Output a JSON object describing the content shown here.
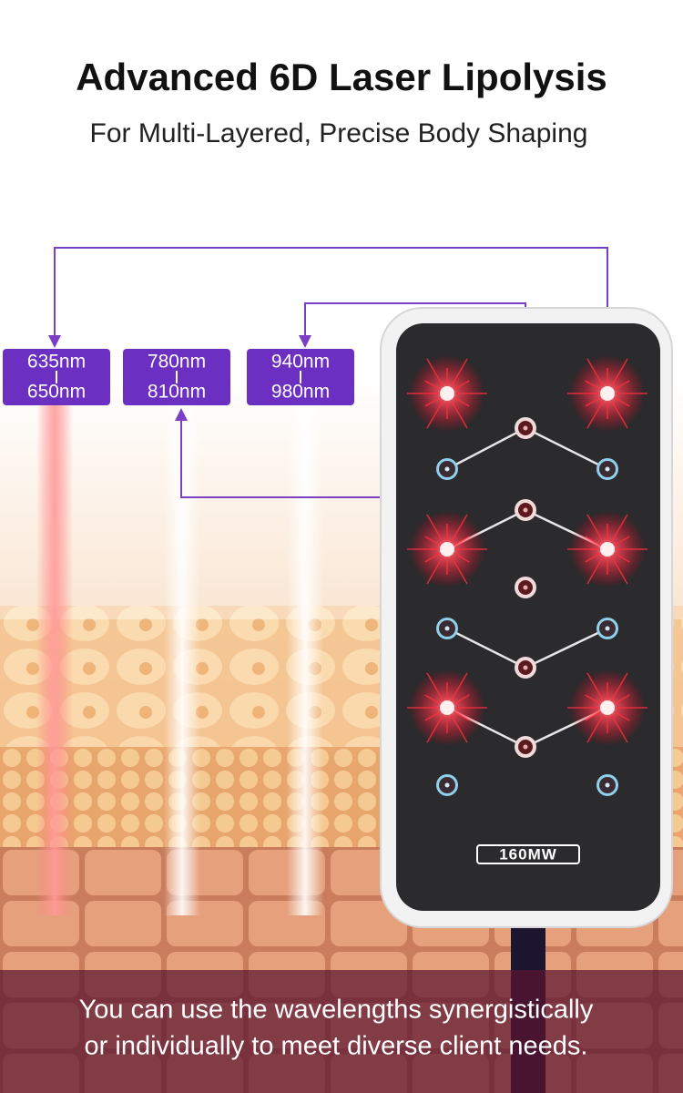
{
  "header": {
    "title": "Advanced 6D Laser Lipolysis",
    "subtitle": "For Multi-Layered, Precise Body Shaping"
  },
  "wavelengths": [
    {
      "top": "635nm",
      "bottom": "650nm"
    },
    {
      "top": "780nm",
      "bottom": "810nm"
    },
    {
      "top": "940nm",
      "bottom": "980nm"
    }
  ],
  "device": {
    "label": "160MW"
  },
  "caption": [
    "You can use the wavelengths synergistically",
    "or individually to meet diverse client needs."
  ]
}
